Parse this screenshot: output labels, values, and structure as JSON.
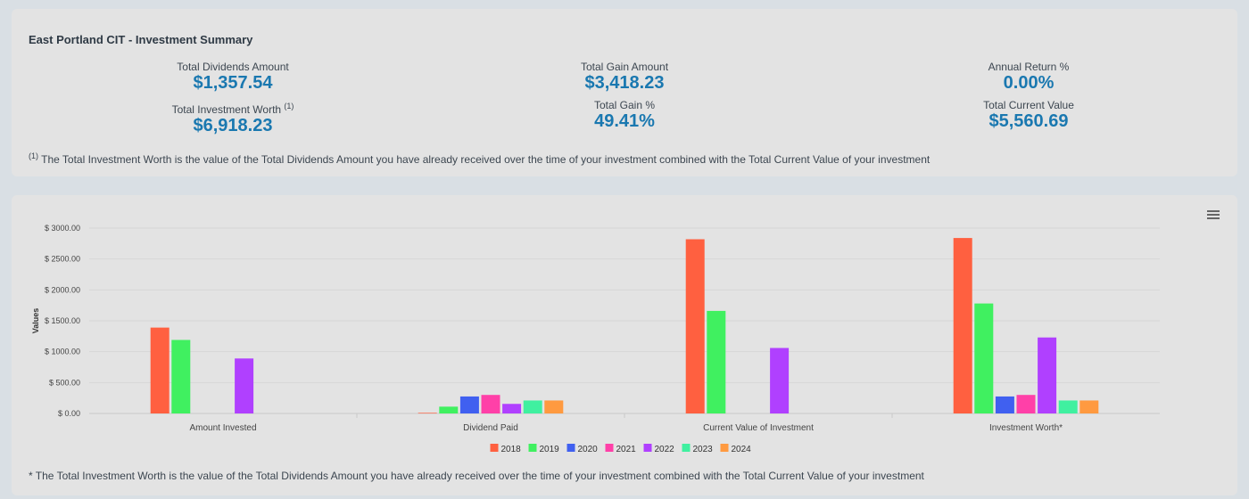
{
  "summary": {
    "title": "East Portland CIT - Investment Summary",
    "metrics": [
      {
        "label": "Total Dividends Amount",
        "value": "$1,357.54"
      },
      {
        "label": "Total Gain Amount",
        "value": "$3,418.23"
      },
      {
        "label": "Annual Return %",
        "value": "0.00%"
      },
      {
        "label": "Total Investment Worth",
        "sup": "(1)",
        "value": "$6,918.23"
      },
      {
        "label": "Total Gain %",
        "value": "49.41%"
      },
      {
        "label": "Total Current Value",
        "value": "$5,560.69"
      }
    ],
    "footnote_marker": "(1)",
    "footnote": "The Total Investment Worth is the value of the Total Dividends Amount you have already received over the time of your investment combined with the Total Current Value of your investment"
  },
  "chart_note": "* The Total Investment Worth is the value of the Total Dividends Amount you have already received over the time of your investment combined with the Total Current Value of your investment",
  "icons": {
    "menu": "hamburger-menu-icon"
  },
  "chart_data": {
    "type": "bar",
    "ylabel": "Values",
    "ylim": [
      0,
      3000
    ],
    "yticks": [
      "$ 0.00",
      "$ 500.00",
      "$ 1000.00",
      "$ 1500.00",
      "$ 2000.00",
      "$ 2500.00",
      "$ 3000.00"
    ],
    "categories": [
      "Amount Invested",
      "Dividend Paid",
      "Current Value of Investment",
      "Investment Worth*"
    ],
    "series": [
      {
        "name": "2018",
        "color": "#ff6040",
        "values": [
          1390,
          10,
          2820,
          2840
        ]
      },
      {
        "name": "2019",
        "color": "#40f060",
        "values": [
          1190,
          110,
          1660,
          1780
        ]
      },
      {
        "name": "2020",
        "color": "#4060f0",
        "values": [
          0,
          275,
          0,
          275
        ]
      },
      {
        "name": "2021",
        "color": "#ff40a8",
        "values": [
          0,
          300,
          0,
          300
        ]
      },
      {
        "name": "2022",
        "color": "#b040ff",
        "values": [
          890,
          155,
          1060,
          1230
        ]
      },
      {
        "name": "2023",
        "color": "#40f0a0",
        "values": [
          0,
          210,
          0,
          210
        ]
      },
      {
        "name": "2024",
        "color": "#ff9a40",
        "values": [
          0,
          210,
          0,
          210
        ]
      }
    ],
    "grid": true,
    "legend": "bottom"
  }
}
